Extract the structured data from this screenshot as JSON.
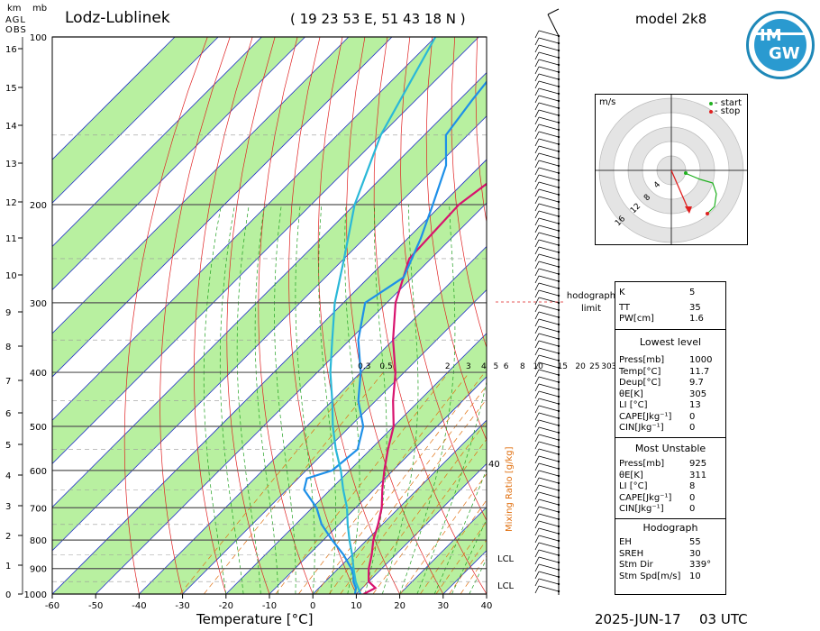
{
  "header": {
    "station": "Lodz-Lublinek",
    "coords": "( 19 23 53  E,  51 43 18 N )",
    "model": "model 2k8",
    "date": "2025-JUN-17",
    "time": "03 UTC",
    "logo_top": "IM",
    "logo_bottom": "GW"
  },
  "axes": {
    "km_label": "km",
    "agl_label": "AGL",
    "obs_label": "OBS",
    "mb_label": "mb",
    "xlabel": "Temperature [°C]",
    "mixing_label": "Mixing Ratio [g/kg]",
    "hodograph_limit": "hodograph limit",
    "lcl": "LCL",
    "km_ticks": [
      "16",
      "15",
      "14",
      "13",
      "12",
      "11",
      "10",
      "9",
      "8",
      "7",
      "6",
      "5",
      "4",
      "3",
      "2",
      "1",
      "0"
    ],
    "p_ticks": [
      "100",
      "200",
      "300",
      "400",
      "500",
      "600",
      "700",
      "800",
      "900",
      "1000"
    ],
    "t_ticks": [
      "-60",
      "-50",
      "-40",
      "-30",
      "-20",
      "-10",
      "0",
      "10",
      "20",
      "30",
      "40"
    ],
    "mixing_ticks": [
      "0.3",
      "0.5",
      "2",
      "3",
      "4",
      "5",
      "6",
      "8",
      "10",
      "15",
      "20",
      "25",
      "30",
      "35"
    ],
    "theta_mark": "40"
  },
  "hodo": {
    "unit": "m/s",
    "legend_start": "- start",
    "legend_stop": "- stop",
    "rings": [
      "4",
      "8",
      "12",
      "16"
    ]
  },
  "indices": {
    "K_label": "K",
    "K": "5",
    "TT_label": "TT",
    "TT": "35",
    "PW_label": "PW[cm]",
    "PW": "1.6",
    "lowest_title": "Lowest level",
    "lowest": [
      [
        "Press[mb]",
        "1000"
      ],
      [
        "Temp[°C]",
        "11.7"
      ],
      [
        "Deup[°C]",
        "9.7"
      ],
      [
        "θE[K]",
        "305"
      ],
      [
        "LI [°C]",
        "13"
      ],
      [
        "CAPE[Jkg⁻¹]",
        "0"
      ],
      [
        "CIN[Jkg⁻¹]",
        "0"
      ]
    ],
    "mu_title": "Most Unstable",
    "mu": [
      [
        "Press[mb]",
        "925"
      ],
      [
        "θE[K]",
        "311"
      ],
      [
        "LI [°C]",
        "8"
      ],
      [
        "CAPE[Jkg⁻¹]",
        "0"
      ],
      [
        "CIN[Jkg⁻¹]",
        "0"
      ]
    ],
    "hodo_title": "Hodograph",
    "hodo": [
      [
        "EH",
        "55"
      ],
      [
        "SREH",
        "30"
      ],
      [
        "Stm Dir",
        "339°"
      ],
      [
        "Stm Spd[m/s]",
        "10"
      ]
    ]
  },
  "colors": {
    "temp": "#d8136e",
    "dew": "#1e90e8",
    "parcel": "#2ab8d8",
    "dry": "#e02020",
    "moist": "#20a020",
    "mix": "#e07010",
    "isotherm": "#2030c8",
    "band": "#b8f0a0"
  },
  "chart_data": {
    "type": "line",
    "title": "Lodz-Lublinek",
    "xlabel": "Temperature [°C]",
    "ylabel": "mb",
    "xlim": [
      -60,
      40
    ],
    "ylim": [
      1000,
      100
    ],
    "series": [
      {
        "values": [
          [
            1000,
            11.7
          ],
          [
            975,
            13
          ],
          [
            950,
            10
          ],
          [
            925,
            8.5
          ],
          [
            900,
            7
          ],
          [
            850,
            4.5
          ],
          [
            800,
            1.5
          ],
          [
            750,
            -1
          ],
          [
            700,
            -4
          ],
          [
            650,
            -8
          ],
          [
            600,
            -12
          ],
          [
            550,
            -16
          ],
          [
            500,
            -20
          ],
          [
            450,
            -26
          ],
          [
            400,
            -32
          ],
          [
            350,
            -40
          ],
          [
            300,
            -48
          ],
          [
            250,
            -55
          ],
          [
            200,
            -56
          ],
          [
            170,
            -53
          ],
          [
            150,
            -52
          ],
          [
            130,
            -52
          ],
          [
            100,
            -55
          ]
        ]
      },
      {
        "values": [
          [
            1000,
            9.7
          ],
          [
            975,
            8.5
          ],
          [
            950,
            6.5
          ],
          [
            925,
            5
          ],
          [
            900,
            3
          ],
          [
            850,
            -2
          ],
          [
            800,
            -8
          ],
          [
            750,
            -14
          ],
          [
            700,
            -19
          ],
          [
            650,
            -26
          ],
          [
            620,
            -28
          ],
          [
            600,
            -24
          ],
          [
            550,
            -23
          ],
          [
            500,
            -27
          ],
          [
            450,
            -34
          ],
          [
            400,
            -40
          ],
          [
            350,
            -48
          ],
          [
            300,
            -55
          ],
          [
            270,
            -52
          ],
          [
            230,
            -57
          ],
          [
            200,
            -62
          ],
          [
            170,
            -68
          ],
          [
            150,
            -75
          ],
          [
            130,
            -77
          ],
          [
            100,
            -80
          ]
        ]
      },
      {
        "values": [
          [
            1000,
            11
          ],
          [
            950,
            7
          ],
          [
            900,
            3.5
          ],
          [
            850,
            0
          ],
          [
            800,
            -4
          ],
          [
            750,
            -8
          ],
          [
            700,
            -12
          ],
          [
            650,
            -17
          ],
          [
            600,
            -22
          ],
          [
            550,
            -28
          ],
          [
            500,
            -34
          ],
          [
            450,
            -40
          ],
          [
            400,
            -47
          ],
          [
            350,
            -54
          ],
          [
            300,
            -62
          ],
          [
            250,
            -70
          ],
          [
            200,
            -80
          ],
          [
            150,
            -90
          ],
          [
            100,
            -100
          ]
        ]
      }
    ]
  }
}
